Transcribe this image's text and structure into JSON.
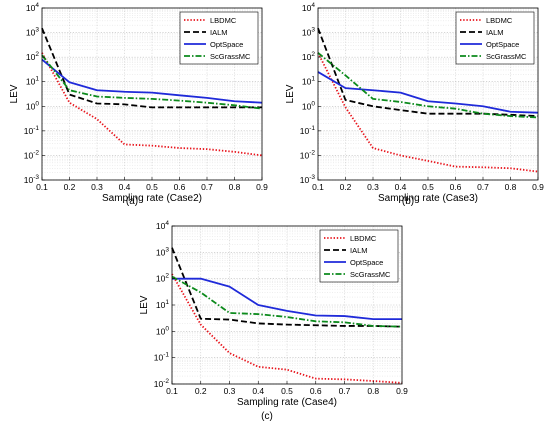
{
  "chart_data": [
    {
      "type": "line",
      "panel_label": "(a)",
      "xlabel": "Sampling rate (Case2)",
      "ylabel": "LEV",
      "xlim": [
        0.1,
        0.9
      ],
      "ylim": [
        0.001,
        10000
      ],
      "yscale": "log",
      "grid": true,
      "legend_position": "top-right",
      "x": [
        0.1,
        0.2,
        0.3,
        0.4,
        0.5,
        0.6,
        0.7,
        0.8,
        0.9
      ],
      "xticks": [
        "0.1",
        "0.2",
        "0.3",
        "0.4",
        "0.5",
        "0.6",
        "0.7",
        "0.8",
        "0.9"
      ],
      "yticks": [
        "10-3",
        "10-2",
        "10-1",
        "100",
        "101",
        "102",
        "103",
        "104"
      ],
      "series": [
        {
          "name": "LBDMC",
          "color": "#e8141c",
          "style": "dotted",
          "values": [
            150,
            1.4,
            0.3,
            0.028,
            0.025,
            0.02,
            0.018,
            0.014,
            0.01
          ]
        },
        {
          "name": "IALM",
          "color": "#000000",
          "style": "dashed",
          "values": [
            1500,
            3.0,
            1.3,
            1.2,
            0.9,
            0.9,
            0.9,
            0.9,
            0.9
          ]
        },
        {
          "name": "OptSpace",
          "color": "#1f2ad9",
          "style": "solid",
          "values": [
            80,
            9.5,
            4.5,
            3.9,
            3.6,
            2.8,
            2.2,
            1.6,
            1.4
          ]
        },
        {
          "name": "ScGrassMC",
          "color": "#0c8a1c",
          "style": "dashdot",
          "values": [
            120,
            4.5,
            2.5,
            2.2,
            2.0,
            1.7,
            1.4,
            1.1,
            0.8
          ]
        }
      ]
    },
    {
      "type": "line",
      "panel_label": "(b)",
      "xlabel": "Sampling rate (Case3)",
      "ylabel": "LEV",
      "xlim": [
        0.1,
        0.9
      ],
      "ylim": [
        0.001,
        10000
      ],
      "yscale": "log",
      "grid": true,
      "legend_position": "top-right",
      "x": [
        0.1,
        0.2,
        0.3,
        0.4,
        0.5,
        0.6,
        0.7,
        0.8,
        0.9
      ],
      "xticks": [
        "0.1",
        "0.2",
        "0.3",
        "0.4",
        "0.5",
        "0.6",
        "0.7",
        "0.8",
        "0.9"
      ],
      "yticks": [
        "10-3",
        "10-2",
        "10-1",
        "100",
        "101",
        "102",
        "103",
        "104"
      ],
      "series": [
        {
          "name": "LBDMC",
          "color": "#e8141c",
          "style": "dotted",
          "values": [
            150,
            0.9,
            0.02,
            0.01,
            0.006,
            0.0035,
            0.0033,
            0.003,
            0.0022
          ]
        },
        {
          "name": "IALM",
          "color": "#000000",
          "style": "dashed",
          "values": [
            1500,
            1.8,
            1.0,
            0.7,
            0.5,
            0.5,
            0.5,
            0.45,
            0.4
          ]
        },
        {
          "name": "OptSpace",
          "color": "#1f2ad9",
          "style": "solid",
          "values": [
            25,
            5.5,
            4.5,
            3.6,
            1.6,
            1.3,
            1.0,
            0.6,
            0.55
          ]
        },
        {
          "name": "ScGrassMC",
          "color": "#0c8a1c",
          "style": "dashdot",
          "values": [
            150,
            18,
            2.0,
            1.5,
            1.0,
            0.8,
            0.5,
            0.4,
            0.35
          ]
        }
      ]
    },
    {
      "type": "line",
      "panel_label": "(c)",
      "xlabel": "Sampling rate (Case4)",
      "ylabel": "LEV",
      "xlim": [
        0.1,
        0.9
      ],
      "ylim": [
        0.01,
        10000
      ],
      "yscale": "log",
      "grid": true,
      "legend_position": "top-right",
      "x": [
        0.1,
        0.2,
        0.3,
        0.4,
        0.5,
        0.6,
        0.7,
        0.8,
        0.9
      ],
      "xticks": [
        "0.1",
        "0.2",
        "0.3",
        "0.4",
        "0.5",
        "0.6",
        "0.7",
        "0.8",
        "0.9"
      ],
      "yticks": [
        "10-2",
        "10-1",
        "100",
        "101",
        "102",
        "103",
        "104"
      ],
      "series": [
        {
          "name": "LBDMC",
          "color": "#e8141c",
          "style": "dotted",
          "values": [
            150,
            1.8,
            0.15,
            0.045,
            0.035,
            0.016,
            0.015,
            0.013,
            0.011
          ]
        },
        {
          "name": "IALM",
          "color": "#000000",
          "style": "dashed",
          "values": [
            1500,
            3.0,
            2.8,
            2.0,
            1.8,
            1.7,
            1.6,
            1.6,
            1.5
          ]
        },
        {
          "name": "OptSpace",
          "color": "#1f2ad9",
          "style": "solid",
          "values": [
            100,
            100,
            50,
            10,
            6.0,
            4.0,
            3.8,
            2.9,
            2.9
          ]
        },
        {
          "name": "ScGrassMC",
          "color": "#0c8a1c",
          "style": "dashdot",
          "values": [
            120,
            30,
            5.0,
            4.5,
            3.5,
            2.4,
            2.2,
            1.6,
            1.5
          ]
        }
      ]
    }
  ]
}
